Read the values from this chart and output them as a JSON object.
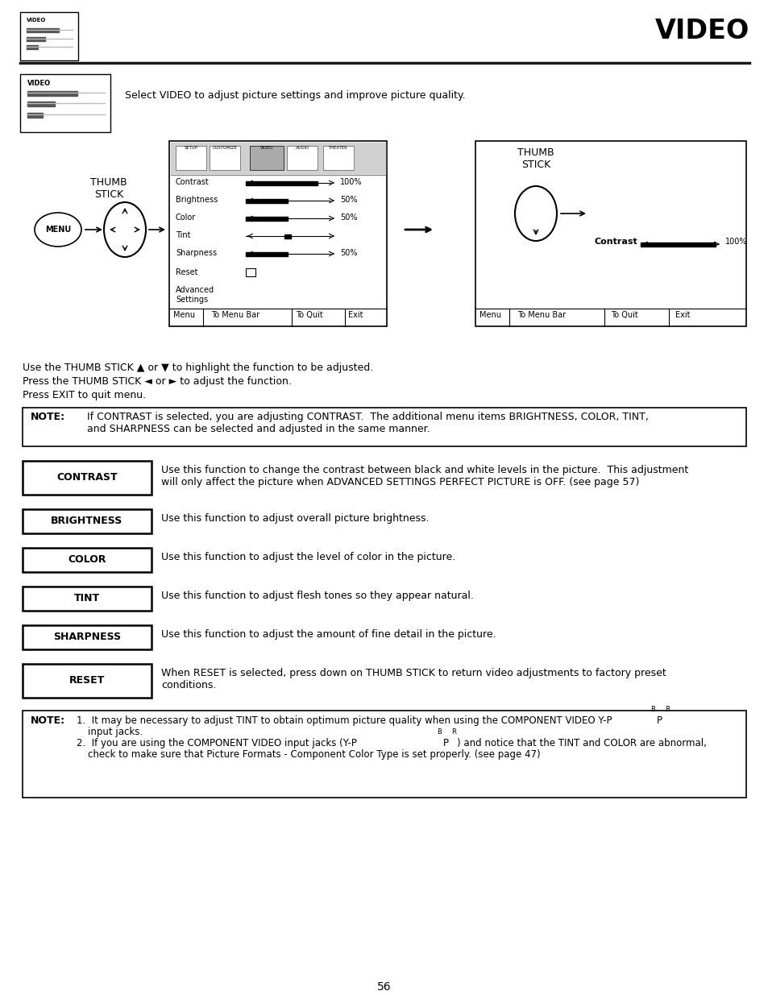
{
  "title": "VIDEO",
  "page_number": "56",
  "bg_color": "#ffffff",
  "text_color": "#000000",
  "intro_text": "Select VIDEO to adjust picture settings and improve picture quality.",
  "instruction_lines": [
    "Use the THUMB STICK ▲ or ▼ to highlight the function to be adjusted.",
    "Press the THUMB STICK ◄ or ► to adjust the function.",
    "Press EXIT to quit menu."
  ],
  "note1_text": "If CONTRAST is selected, you are adjusting CONTRAST.  The additional menu items BRIGHTNESS, COLOR, TINT,\nand SHARPNESS can be selected and adjusted in the same manner.",
  "feature_boxes": [
    {
      "label": "CONTRAST",
      "desc": "Use this function to change the contrast between black and white levels in the picture.  This adjustment\nwill only affect the picture when ADVANCED SETTINGS PERFECT PICTURE is OFF. (see page 57)",
      "two_line": true
    },
    {
      "label": "BRIGHTNESS",
      "desc": "Use this function to adjust overall picture brightness.",
      "two_line": false
    },
    {
      "label": "COLOR",
      "desc": "Use this function to adjust the level of color in the picture.",
      "two_line": false
    },
    {
      "label": "TINT",
      "desc": "Use this function to adjust flesh tones so they appear natural.",
      "two_line": false
    },
    {
      "label": "SHARPNESS",
      "desc": "Use this function to adjust the amount of fine detail in the picture.",
      "two_line": false
    },
    {
      "label": "RESET",
      "desc": "When RESET is selected, press down on THUMB STICK to return video adjustments to factory preset\nconditions.",
      "two_line": true
    }
  ]
}
